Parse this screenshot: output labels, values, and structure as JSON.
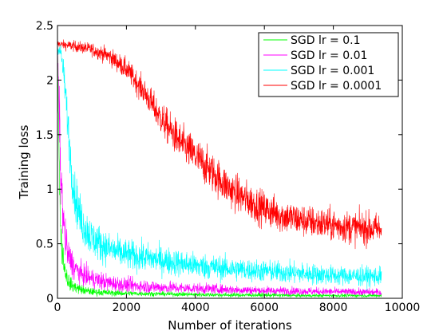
{
  "chart_data": {
    "type": "line",
    "title": "",
    "xlabel": "Number of iterations",
    "ylabel": "Training loss",
    "xlim": [
      0,
      10000
    ],
    "ylim": [
      0,
      2.5
    ],
    "xticks": [
      0,
      2000,
      4000,
      6000,
      8000,
      10000
    ],
    "xtick_labels": [
      "0",
      "2000",
      "4000",
      "6000",
      "8000",
      "10000"
    ],
    "yticks": [
      0,
      0.5,
      1,
      1.5,
      2,
      2.5
    ],
    "ytick_labels": [
      "0",
      "0.5",
      "1",
      "1.5",
      "2",
      "2.5"
    ],
    "grid": false,
    "legend_position": "top-right",
    "series": [
      {
        "name": "SGD lr = 0.1",
        "color": "#00ff00",
        "x": [
          0,
          50,
          100,
          200,
          300,
          400,
          600,
          800,
          1000,
          1500,
          2000,
          3000,
          4000,
          5000,
          6000,
          7000,
          8000,
          9000,
          9400
        ],
        "values": [
          2.3,
          1.2,
          0.55,
          0.28,
          0.17,
          0.12,
          0.09,
          0.07,
          0.06,
          0.05,
          0.045,
          0.04,
          0.035,
          0.03,
          0.03,
          0.025,
          0.025,
          0.025,
          0.025
        ],
        "noise": [
          0.05,
          0.15,
          0.15,
          0.1,
          0.08,
          0.06,
          0.05,
          0.04,
          0.035,
          0.03,
          0.025,
          0.02,
          0.02,
          0.02,
          0.02,
          0.015,
          0.015,
          0.015,
          0.015
        ]
      },
      {
        "name": "SGD lr = 0.01",
        "color": "#ff00ff",
        "x": [
          0,
          50,
          100,
          200,
          300,
          500,
          700,
          1000,
          1500,
          2000,
          3000,
          4000,
          5000,
          6000,
          7000,
          8000,
          9000,
          9400
        ],
        "values": [
          2.3,
          1.7,
          1.1,
          0.6,
          0.4,
          0.28,
          0.22,
          0.18,
          0.14,
          0.12,
          0.1,
          0.09,
          0.08,
          0.07,
          0.065,
          0.06,
          0.055,
          0.055
        ],
        "noise": [
          0.05,
          0.3,
          0.3,
          0.2,
          0.15,
          0.12,
          0.1,
          0.09,
          0.08,
          0.07,
          0.06,
          0.05,
          0.045,
          0.04,
          0.04,
          0.035,
          0.035,
          0.035
        ]
      },
      {
        "name": "SGD lr = 0.001",
        "color": "#00ffff",
        "x": [
          0,
          100,
          200,
          300,
          400,
          500,
          700,
          1000,
          1500,
          2000,
          3000,
          4000,
          5000,
          6000,
          7000,
          8000,
          9000,
          9400
        ],
        "values": [
          2.3,
          2.25,
          2.0,
          1.6,
          1.2,
          0.95,
          0.7,
          0.55,
          0.45,
          0.4,
          0.35,
          0.3,
          0.27,
          0.25,
          0.23,
          0.21,
          0.2,
          0.2
        ],
        "noise": [
          0.05,
          0.08,
          0.15,
          0.2,
          0.22,
          0.22,
          0.2,
          0.18,
          0.15,
          0.14,
          0.13,
          0.12,
          0.11,
          0.1,
          0.1,
          0.09,
          0.09,
          0.09
        ]
      },
      {
        "name": "SGD lr = 0.0001",
        "color": "#ff0000",
        "x": [
          0,
          500,
          1000,
          1500,
          2000,
          2500,
          3000,
          3500,
          4000,
          4500,
          5000,
          5500,
          6000,
          6500,
          7000,
          7500,
          8000,
          8500,
          9000,
          9400
        ],
        "values": [
          2.33,
          2.31,
          2.28,
          2.22,
          2.1,
          1.9,
          1.65,
          1.45,
          1.3,
          1.15,
          1.0,
          0.9,
          0.82,
          0.76,
          0.72,
          0.69,
          0.67,
          0.65,
          0.64,
          0.63
        ],
        "noise": [
          0.04,
          0.05,
          0.06,
          0.08,
          0.1,
          0.12,
          0.15,
          0.17,
          0.18,
          0.18,
          0.17,
          0.17,
          0.16,
          0.16,
          0.15,
          0.15,
          0.15,
          0.15,
          0.15,
          0.15
        ]
      }
    ]
  }
}
